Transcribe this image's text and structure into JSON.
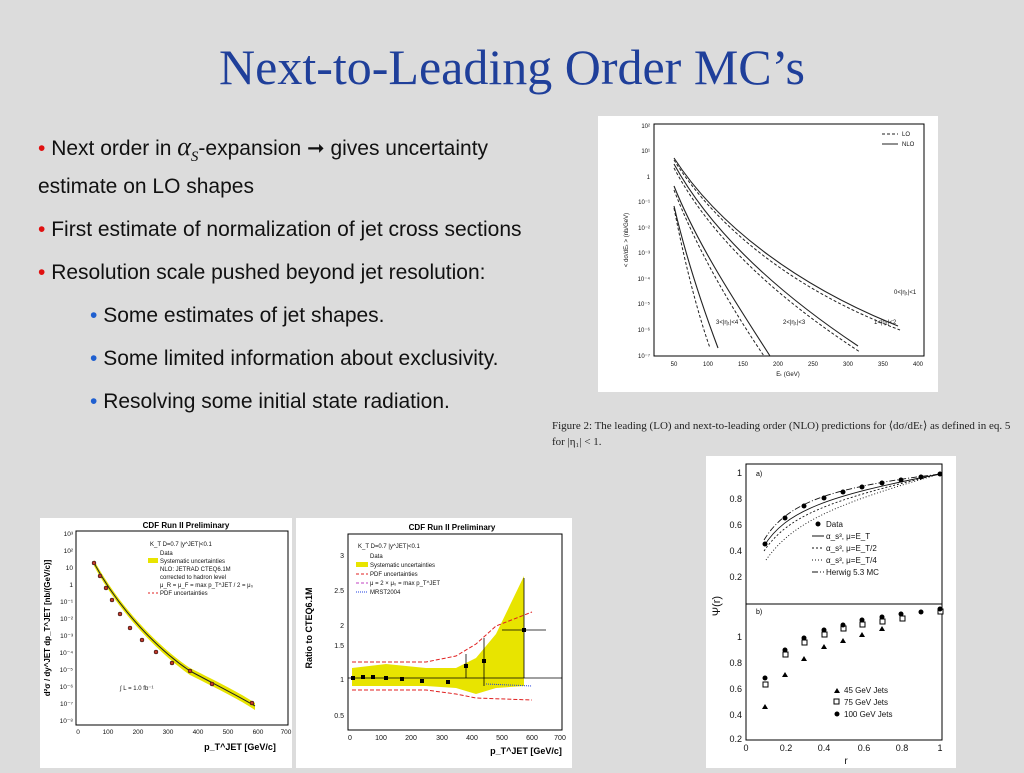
{
  "slide": {
    "title": "Next-to-Leading Order MC’s",
    "bullets": [
      {
        "pre": "Next order in ",
        "alpha": "α",
        "alpha_sub": "S",
        "post": "-expansion ",
        "arrow": "➞",
        "post2": " gives uncertainty estimate on LO shapes"
      },
      {
        "text": "First estimate of normalization of jet cross sections"
      },
      {
        "text": "Resolution scale pushed beyond jet resolution:"
      }
    ],
    "sub_bullets": [
      "Some estimates of jet shapes.",
      "Some limited information about exclusivity.",
      "Resolving some initial state radiation."
    ],
    "bullet_mark": "•"
  },
  "figure_top": {
    "legend": [
      "LO",
      "NLO"
    ],
    "ylabel": "< dσ/dEₜ > (nb/GeV)",
    "xlabel": "Eₜ (GeV)",
    "yticks": [
      "10²",
      "10¹",
      "1",
      "10⁻¹",
      "10⁻²",
      "10⁻³",
      "10⁻⁴",
      "10⁻⁵",
      "10⁻⁶",
      "10⁻⁷"
    ],
    "xticks": [
      "50",
      "100",
      "150",
      "200",
      "250",
      "300",
      "350",
      "400"
    ],
    "curve_labels": [
      "0<|η₁|<1",
      "1<|η₁|<2",
      "2<|η₁|<3",
      "3<|η₁|<4"
    ],
    "caption": "Figure 2: The leading (LO) and next-to-leading order (NLO) predictions for ⟨dσ/dEₜ⟩ as defined in eq. 5 for |η₁| < 1."
  },
  "figure_left": {
    "header": "CDF Run II Preliminary",
    "legend_title": "K_T  D=0.7  |y^JET|<0.1",
    "legend": [
      "Data",
      "Systematic uncertainties",
      "NLO: JETRAD CTEQ6.1M",
      "corrected to hadron level",
      "μ_R = μ_F = max p_T^JET / 2 = μ₀",
      "PDF uncertainties"
    ],
    "lumi": "∫ L = 1.0 fb⁻¹",
    "ylabel": "d²σ / dy^JET dp_T^JET [nb/(GeV/c)]",
    "xlabel": "p_T^JET [GeV/c]",
    "yticks": [
      "10³",
      "10²",
      "10",
      "1",
      "10⁻¹",
      "10⁻²",
      "10⁻³",
      "10⁻⁴",
      "10⁻⁵",
      "10⁻⁶",
      "10⁻⁷",
      "10⁻⁸"
    ],
    "xticks": [
      "0",
      "100",
      "200",
      "300",
      "400",
      "500",
      "600",
      "700"
    ]
  },
  "figure_mid": {
    "header": "CDF Run II Preliminary",
    "legend_title": "K_T  D=0.7  |y^JET|<0.1",
    "legend": [
      "Data",
      "Systematic uncertainties",
      "PDF uncertainties",
      "μ = 2 × μ₀ = max p_T^JET",
      "MRST2004"
    ],
    "ylabel": "Ratio to CTEQ6.1M",
    "xlabel": "p_T^JET [GeV/c]",
    "yticks": [
      "3",
      "2.5",
      "2",
      "1.5",
      "1",
      "0.5"
    ],
    "xticks": [
      "0",
      "100",
      "200",
      "300",
      "400",
      "500",
      "600",
      "700"
    ]
  },
  "figure_right": {
    "panel_a": "a)",
    "panel_b": "b)",
    "legend_a": [
      "Data",
      "α_s³, μ=E_T",
      "α_s³, μ=E_T/2",
      "α_s³, μ=E_T/4",
      "Herwig 5.3 MC"
    ],
    "legend_b": [
      "45 GeV Jets",
      "75 GeV Jets",
      "100 GeV Jets"
    ],
    "ylabel": "Ψ(r)",
    "xlabel": "r",
    "yticks": [
      "1",
      "0.8",
      "0.6",
      "0.4",
      "0.2"
    ],
    "xticks": [
      "0",
      "0.2",
      "0.4",
      "0.6",
      "0.8",
      "1"
    ]
  }
}
